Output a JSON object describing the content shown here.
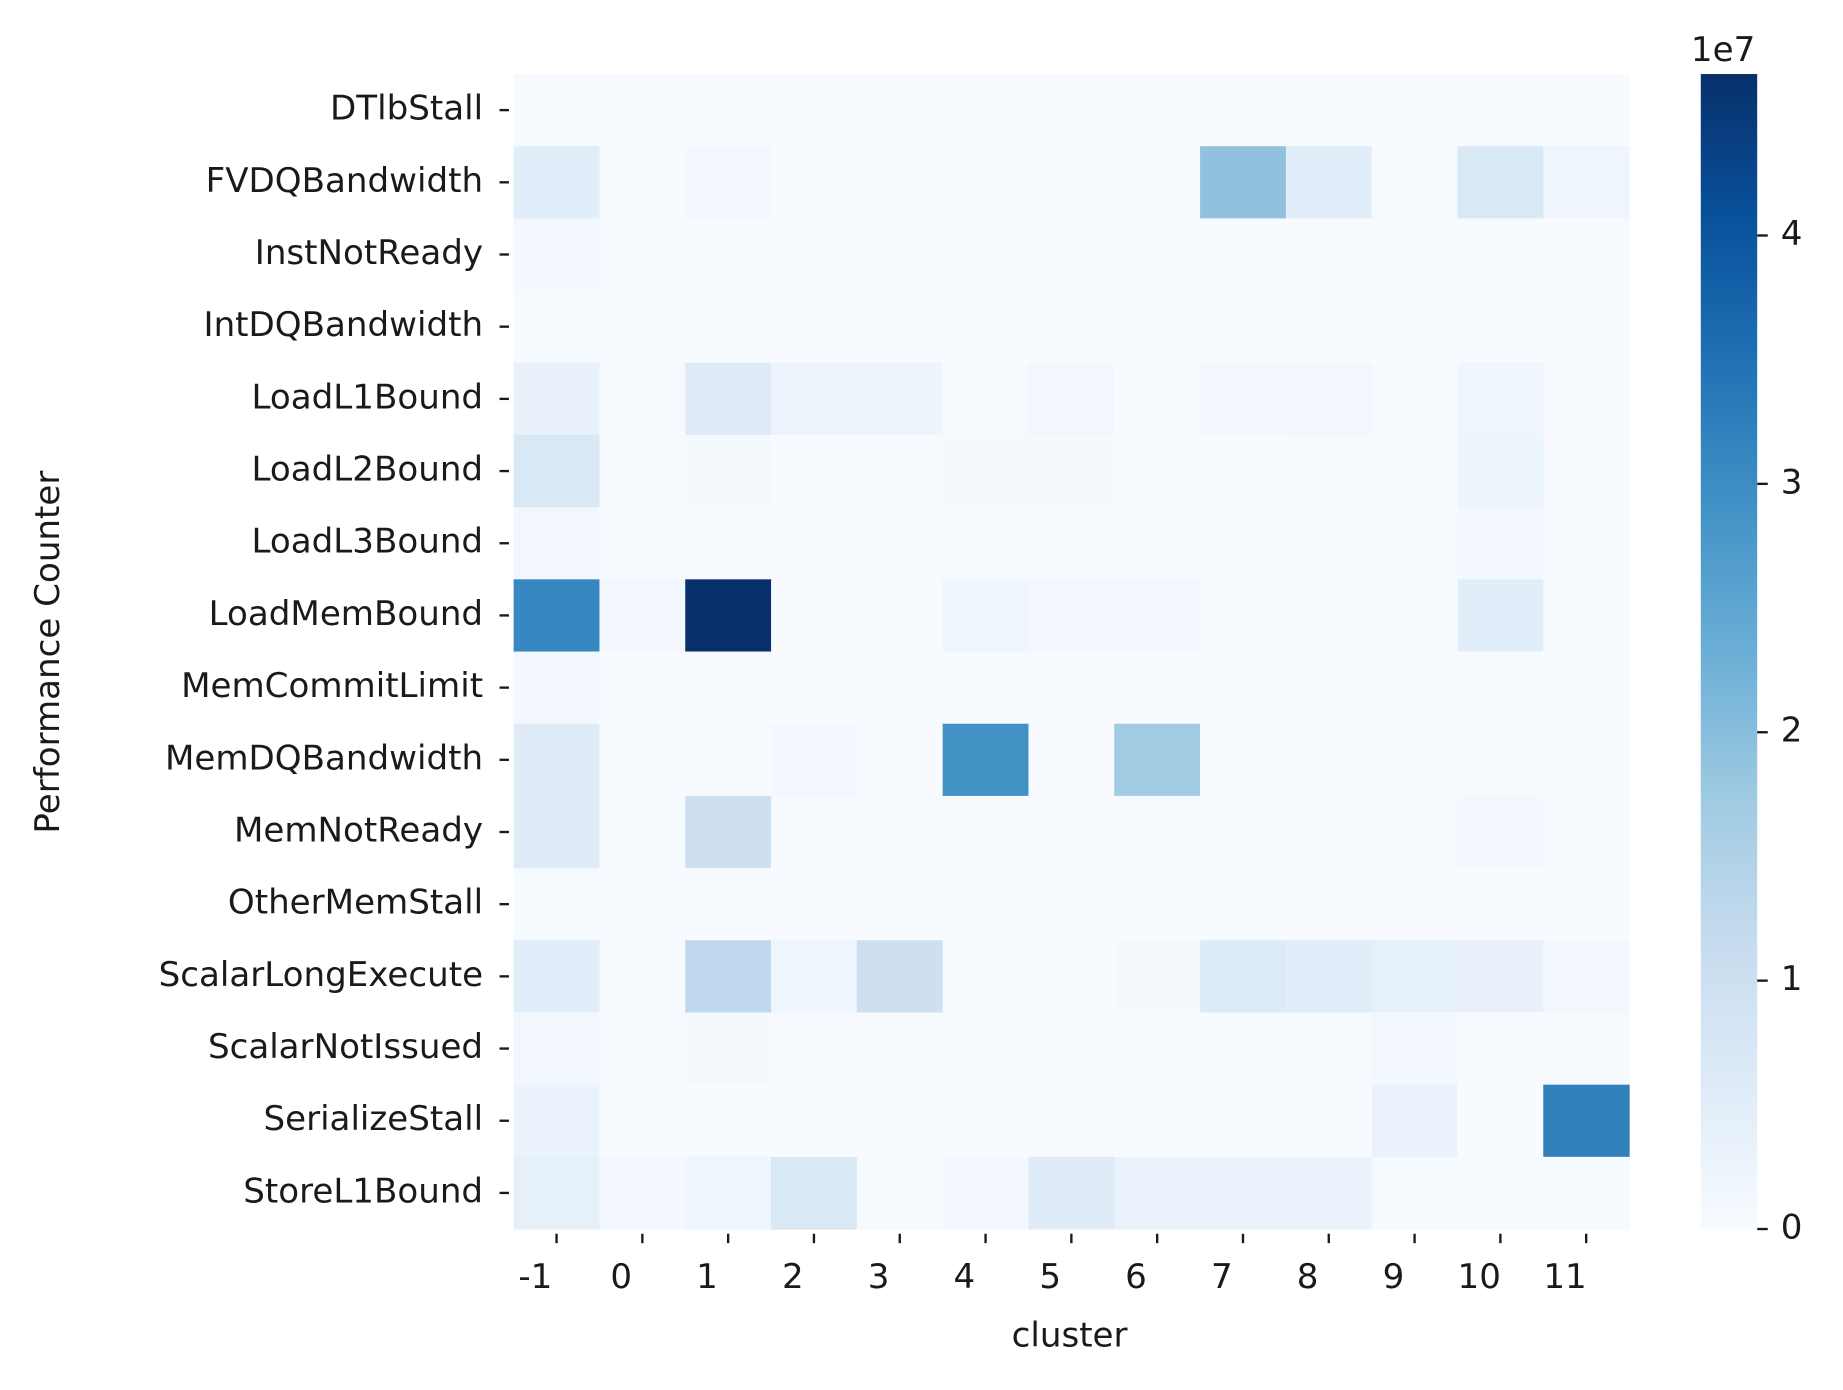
{
  "chart_data": {
    "type": "heatmap",
    "x_label": "cluster",
    "y_label": "Performance Counter",
    "categories": [
      "-1",
      "0",
      "1",
      "2",
      "3",
      "4",
      "5",
      "6",
      "7",
      "8",
      "9",
      "10",
      "11"
    ],
    "rows": [
      "DTlbStall",
      "FVDQBandwidth",
      "InstNotReady",
      "IntDQBandwidth",
      "LoadL1Bound",
      "LoadL2Bound",
      "LoadL3Bound",
      "LoadMemBound",
      "MemCommitLimit",
      "MemDQBandwidth",
      "MemNotReady",
      "OtherMemStall",
      "ScalarLongExecute",
      "ScalarNotIssued",
      "SerializeStall",
      "StoreL1Bound"
    ],
    "values": [
      [
        0.02,
        0,
        0,
        0,
        0,
        0,
        0,
        0,
        0,
        0,
        0,
        0,
        0
      ],
      [
        0.5,
        0.05,
        0.1,
        0,
        0,
        0,
        0,
        0,
        1.9,
        0.5,
        0.02,
        0.7,
        0.2
      ],
      [
        0.1,
        0,
        0,
        0,
        0,
        0,
        0,
        0,
        0,
        0,
        0,
        0,
        0
      ],
      [
        0.05,
        0,
        0,
        0,
        0,
        0,
        0,
        0,
        0,
        0,
        0,
        0,
        0
      ],
      [
        0.35,
        0.02,
        0.55,
        0.25,
        0.25,
        0.05,
        0.15,
        0.05,
        0.1,
        0.15,
        0.05,
        0.2,
        0.02
      ],
      [
        0.7,
        0.02,
        0.08,
        0,
        0,
        0.08,
        0.08,
        0.03,
        0.03,
        0.03,
        0.03,
        0.25,
        0.02
      ],
      [
        0.15,
        0.02,
        0.02,
        0.02,
        0.02,
        0.02,
        0.02,
        0.02,
        0.02,
        0.02,
        0.02,
        0.1,
        0.02
      ],
      [
        3.1,
        0.15,
        4.65,
        0,
        0,
        0.2,
        0.15,
        0.1,
        0.05,
        0.05,
        0,
        0.5,
        0.05
      ],
      [
        0.1,
        0,
        0,
        0,
        0,
        0,
        0,
        0,
        0,
        0,
        0,
        0,
        0
      ],
      [
        0.55,
        0.05,
        0,
        0.1,
        0,
        2.9,
        0,
        1.7,
        0.02,
        0.02,
        0.02,
        0.02,
        0.02
      ],
      [
        0.55,
        0.05,
        1.0,
        0.02,
        0.02,
        0.05,
        0.02,
        0.05,
        0.02,
        0.02,
        0.02,
        0.1,
        0.02
      ],
      [
        0.05,
        0,
        0,
        0,
        0,
        0,
        0,
        0,
        0,
        0,
        0,
        0,
        0
      ],
      [
        0.5,
        0.05,
        1.25,
        0.2,
        1.0,
        0,
        0,
        0.07,
        0.6,
        0.5,
        0.4,
        0.35,
        0.1
      ],
      [
        0.15,
        0.02,
        0.08,
        0.02,
        0.02,
        0.02,
        0.02,
        0.05,
        0.02,
        0.02,
        0.1,
        0.02,
        0.02
      ],
      [
        0.3,
        0,
        0,
        0,
        0,
        0,
        0,
        0,
        0,
        0,
        0.3,
        0,
        3.2
      ],
      [
        0.4,
        0.1,
        0.2,
        0.7,
        0.02,
        0.1,
        0.55,
        0.3,
        0.3,
        0.3,
        0.05,
        0.05,
        0.05
      ]
    ],
    "cmap": [
      "#f7fbff",
      "#deebf7",
      "#c6dbef",
      "#9ecae1",
      "#6baed6",
      "#4292c6",
      "#2171b5",
      "#08519c",
      "#08306b"
    ],
    "zlim": [
      0,
      4.65
    ],
    "zticks": [
      0,
      1,
      2,
      3,
      4
    ],
    "colorbar_offset": "1e7"
  }
}
